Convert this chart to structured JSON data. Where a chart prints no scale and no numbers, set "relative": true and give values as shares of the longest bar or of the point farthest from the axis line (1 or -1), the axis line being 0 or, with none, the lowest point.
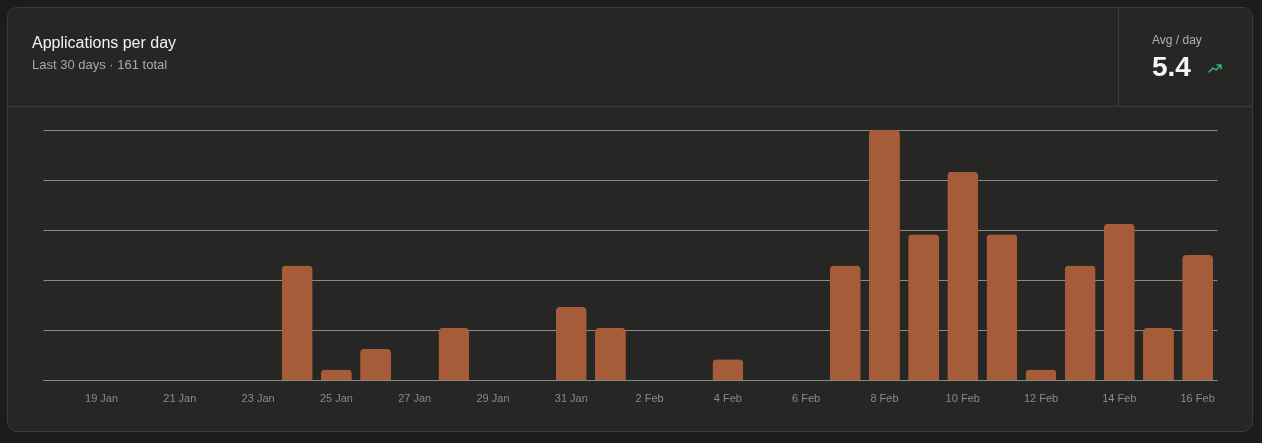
{
  "chart_data": {
    "type": "bar",
    "title": "Applications per day",
    "subtitle": "Last 30 days · 161 total",
    "annotations": [
      "Avg / day",
      "5.4"
    ],
    "categories": [
      null,
      "19 Jan",
      null,
      "21 Jan",
      null,
      "23 Jan",
      null,
      "25 Jan",
      null,
      "27 Jan",
      null,
      "29 Jan",
      null,
      "31 Jan",
      null,
      "2 Feb",
      null,
      "4 Feb",
      null,
      "6 Feb",
      null,
      "8 Feb",
      null,
      "10 Feb",
      null,
      "12 Feb",
      null,
      "14 Feb",
      null,
      "16 Feb"
    ],
    "values": [
      0,
      0,
      0,
      0,
      0,
      0,
      0.458,
      0.042,
      0.125,
      0,
      0.208,
      0,
      0,
      0.292,
      0.208,
      0,
      0,
      0.083,
      0,
      0,
      0.458,
      1,
      0.583,
      0.833,
      0.583,
      0.042,
      0.458,
      0.625,
      0.208,
      0.5
    ],
    "color": "#a65b39",
    "relative": true,
    "grid": "y"
  }
}
